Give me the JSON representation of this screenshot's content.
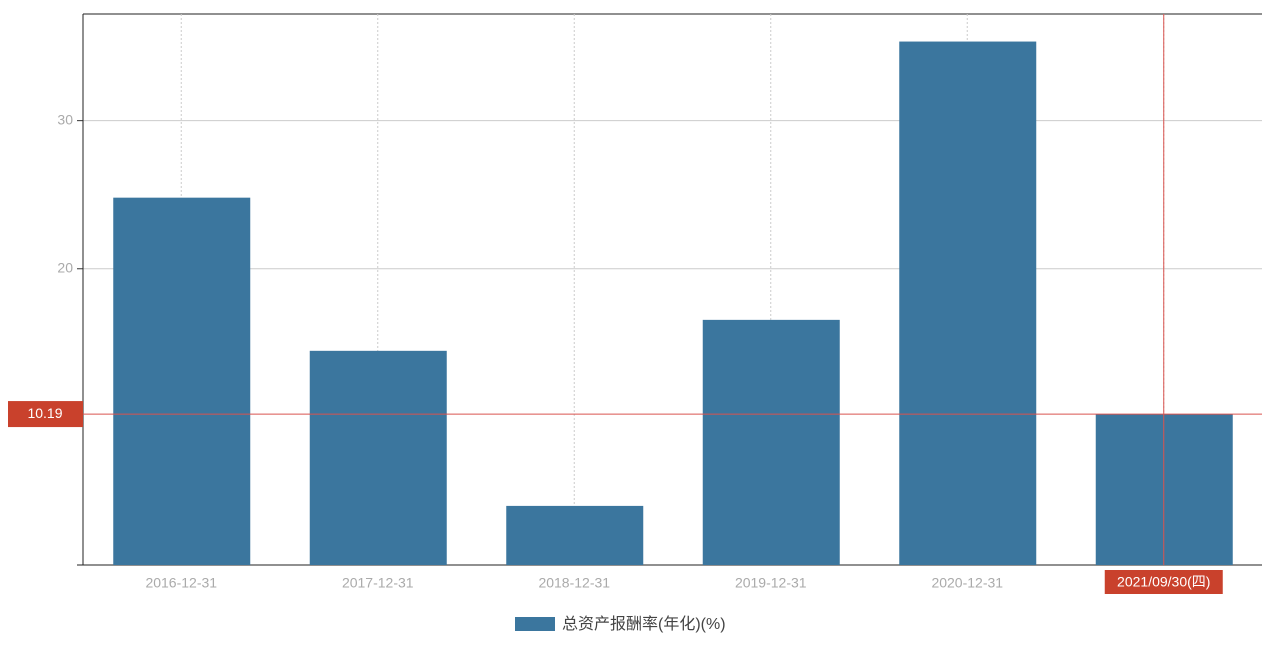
{
  "chart_data": {
    "type": "bar",
    "categories": [
      "2016-12-31",
      "2017-12-31",
      "2018-12-31",
      "2019-12-31",
      "2020-12-31",
      "2021/09/30(四)"
    ],
    "series": [
      {
        "name": "总资产报酬率(年化)(%)",
        "color": "#3b769e",
        "values": [
          24.8,
          14.46,
          3.99,
          16.55,
          35.34,
          10.19
        ]
      }
    ],
    "ylim": [
      0,
      37.2
    ],
    "yticks": [
      20,
      30
    ],
    "grid": true
  }
}
